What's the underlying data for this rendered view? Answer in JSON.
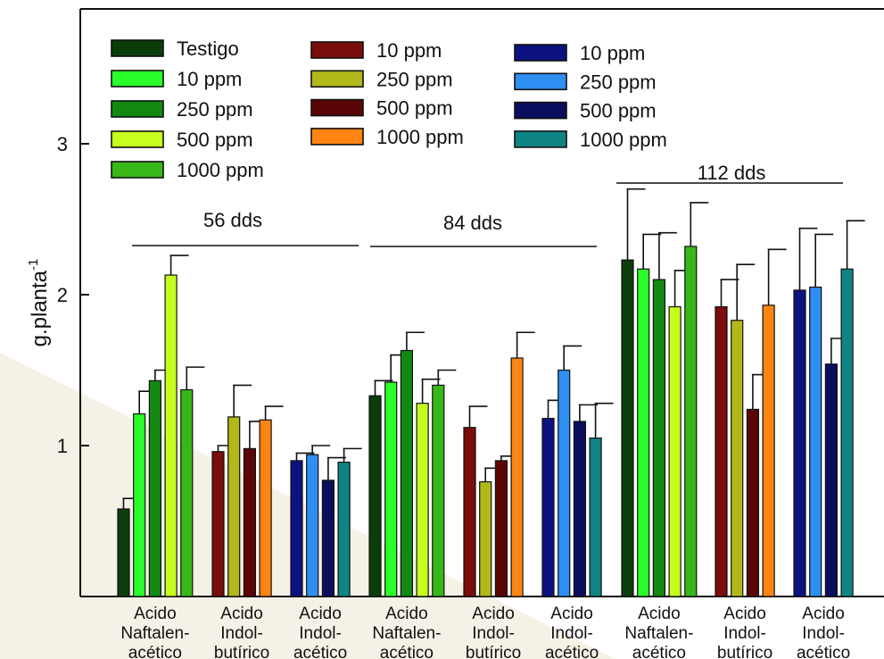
{
  "chart_data": {
    "type": "bar",
    "ylabel": "g.planta",
    "ylabel_sup": "-1",
    "ylim": [
      0,
      3.9
    ],
    "yticks": [
      {
        "value": 1,
        "label": "1"
      },
      {
        "value": 2,
        "label": "2"
      },
      {
        "value": 3,
        "label": "3"
      }
    ],
    "grid": false,
    "legend_position": "top-left",
    "legend": [
      [
        {
          "label": "Testigo",
          "color": "#0b3d0b"
        },
        {
          "label": "10 ppm",
          "color": "#2bff2b"
        },
        {
          "label": "250 ppm",
          "color": "#128a12"
        },
        {
          "label": "500 ppm",
          "color": "#c6ff1e"
        },
        {
          "label": "1000 ppm",
          "color": "#38b818"
        }
      ],
      [
        {
          "label": "10 ppm",
          "color": "#7a0c0c"
        },
        {
          "label": "250 ppm",
          "color": "#b2b81a"
        },
        {
          "label": "500 ppm",
          "color": "#5a0606"
        },
        {
          "label": "1000 ppm",
          "color": "#ff8412"
        }
      ],
      [
        {
          "label": "10 ppm",
          "color": "#0c1280"
        },
        {
          "label": "250 ppm",
          "color": "#2e8ef2"
        },
        {
          "label": "500 ppm",
          "color": "#0a0e5c"
        },
        {
          "label": "1000 ppm",
          "color": "#0e8484"
        }
      ]
    ],
    "periods": [
      {
        "label": "56 dds"
      },
      {
        "label": "84 dds"
      },
      {
        "label": "112 dds"
      }
    ],
    "groups": [
      {
        "label_lines": [
          "Acido",
          "Naftalen-",
          "acético"
        ],
        "period": 0,
        "bars": [
          {
            "value": 0.58,
            "error": 0.07,
            "color": "#0b3d0b"
          },
          {
            "value": 1.21,
            "error": 0.15,
            "color": "#2bff2b"
          },
          {
            "value": 1.43,
            "error": 0.07,
            "color": "#128a12"
          },
          {
            "value": 2.13,
            "error": 0.13,
            "color": "#c6ff1e"
          },
          {
            "value": 1.37,
            "error": 0.15,
            "color": "#38b818"
          }
        ]
      },
      {
        "label_lines": [
          "Acido",
          "Indol-",
          "butírico"
        ],
        "period": 0,
        "bars": [
          {
            "value": 0.96,
            "error": 0.04,
            "color": "#7a0c0c"
          },
          {
            "value": 1.19,
            "error": 0.21,
            "color": "#b2b81a"
          },
          {
            "value": 0.98,
            "error": 0.18,
            "color": "#5a0606"
          },
          {
            "value": 1.17,
            "error": 0.09,
            "color": "#ff8412"
          }
        ]
      },
      {
        "label_lines": [
          "Acido",
          "Indol-",
          "acético"
        ],
        "period": 0,
        "bars": [
          {
            "value": 0.9,
            "error": 0.05,
            "color": "#0c1280"
          },
          {
            "value": 0.94,
            "error": 0.06,
            "color": "#2e8ef2"
          },
          {
            "value": 0.77,
            "error": 0.15,
            "color": "#0a0e5c"
          },
          {
            "value": 0.89,
            "error": 0.09,
            "color": "#0e8484"
          }
        ]
      },
      {
        "label_lines": [
          "Acido",
          "Naftalen-",
          "acético"
        ],
        "period": 1,
        "bars": [
          {
            "value": 1.33,
            "error": 0.1,
            "color": "#0b3d0b"
          },
          {
            "value": 1.42,
            "error": 0.18,
            "color": "#2bff2b"
          },
          {
            "value": 1.63,
            "error": 0.12,
            "color": "#128a12"
          },
          {
            "value": 1.28,
            "error": 0.16,
            "color": "#c6ff1e"
          },
          {
            "value": 1.4,
            "error": 0.1,
            "color": "#38b818"
          }
        ]
      },
      {
        "label_lines": [
          "Acido",
          "Indol-",
          "butírico"
        ],
        "period": 1,
        "bars": [
          {
            "value": 1.12,
            "error": 0.14,
            "color": "#7a0c0c"
          },
          {
            "value": 0.76,
            "error": 0.09,
            "color": "#b2b81a"
          },
          {
            "value": 0.9,
            "error": 0.03,
            "color": "#5a0606"
          },
          {
            "value": 1.58,
            "error": 0.17,
            "color": "#ff8412"
          }
        ]
      },
      {
        "label_lines": [
          "Acido",
          "Indol-",
          "acético"
        ],
        "period": 1,
        "bars": [
          {
            "value": 1.18,
            "error": 0.12,
            "color": "#0c1280"
          },
          {
            "value": 1.5,
            "error": 0.16,
            "color": "#2e8ef2"
          },
          {
            "value": 1.16,
            "error": 0.11,
            "color": "#0a0e5c"
          },
          {
            "value": 1.05,
            "error": 0.23,
            "color": "#0e8484"
          }
        ]
      },
      {
        "label_lines": [
          "Acido",
          "Naftalen-",
          "acético"
        ],
        "period": 2,
        "bars": [
          {
            "value": 2.23,
            "error": 0.47,
            "color": "#0b3d0b"
          },
          {
            "value": 2.17,
            "error": 0.23,
            "color": "#2bff2b"
          },
          {
            "value": 2.1,
            "error": 0.31,
            "color": "#128a12"
          },
          {
            "value": 1.92,
            "error": 0.24,
            "color": "#c6ff1e"
          },
          {
            "value": 2.32,
            "error": 0.29,
            "color": "#38b818"
          }
        ]
      },
      {
        "label_lines": [
          "Acido",
          "Indol-",
          "butírico"
        ],
        "period": 2,
        "bars": [
          {
            "value": 1.92,
            "error": 0.18,
            "color": "#7a0c0c"
          },
          {
            "value": 1.83,
            "error": 0.37,
            "color": "#b2b81a"
          },
          {
            "value": 1.24,
            "error": 0.23,
            "color": "#5a0606"
          },
          {
            "value": 1.93,
            "error": 0.37,
            "color": "#ff8412"
          }
        ]
      },
      {
        "label_lines": [
          "Acido",
          "Indol-",
          "acético"
        ],
        "period": 2,
        "bars": [
          {
            "value": 2.03,
            "error": 0.41,
            "color": "#0c1280"
          },
          {
            "value": 2.05,
            "error": 0.35,
            "color": "#2e8ef2"
          },
          {
            "value": 1.54,
            "error": 0.17,
            "color": "#0a0e5c"
          },
          {
            "value": 2.17,
            "error": 0.32,
            "color": "#0e8484"
          }
        ]
      }
    ]
  }
}
